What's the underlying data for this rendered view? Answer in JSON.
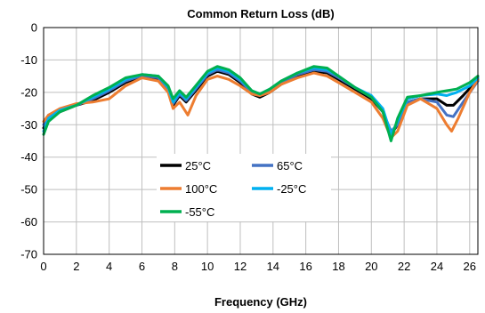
{
  "chart_data": {
    "type": "line",
    "title": "Common Return Loss (dB)",
    "xlabel": "Frequency (GHz)",
    "ylabel": "",
    "xlim": [
      0,
      26.5
    ],
    "ylim": [
      -70,
      0
    ],
    "x_ticks": [
      0,
      2,
      4,
      6,
      8,
      10,
      12,
      14,
      16,
      18,
      20,
      22,
      24,
      26
    ],
    "y_ticks": [
      0,
      -10,
      -20,
      -30,
      -40,
      -50,
      -60,
      -70
    ],
    "grid": true,
    "legend_position": "center-left",
    "series": [
      {
        "name": "25°C",
        "color": "#000000",
        "points": [
          [
            0,
            -31
          ],
          [
            0.3,
            -28
          ],
          [
            1,
            -26
          ],
          [
            2,
            -24
          ],
          [
            3,
            -22.5
          ],
          [
            4,
            -20
          ],
          [
            5,
            -17
          ],
          [
            6,
            -15
          ],
          [
            7,
            -16
          ],
          [
            7.6,
            -19
          ],
          [
            7.9,
            -24
          ],
          [
            8.3,
            -21
          ],
          [
            8.7,
            -23
          ],
          [
            9.2,
            -20
          ],
          [
            10,
            -15
          ],
          [
            10.6,
            -13.5
          ],
          [
            11.3,
            -14.5
          ],
          [
            12,
            -17
          ],
          [
            12.7,
            -20.5
          ],
          [
            13.2,
            -21.5
          ],
          [
            13.8,
            -20
          ],
          [
            14.5,
            -17.5
          ],
          [
            15.5,
            -15
          ],
          [
            16.5,
            -13.5
          ],
          [
            17.3,
            -14
          ],
          [
            18,
            -16
          ],
          [
            19,
            -19
          ],
          [
            20,
            -22
          ],
          [
            20.7,
            -26
          ],
          [
            21.2,
            -33
          ],
          [
            21.6,
            -30
          ],
          [
            22.2,
            -23
          ],
          [
            23,
            -22
          ],
          [
            24,
            -22
          ],
          [
            24.6,
            -24
          ],
          [
            25,
            -24
          ],
          [
            25.6,
            -21
          ],
          [
            26.5,
            -16
          ]
        ]
      },
      {
        "name": "65°C",
        "color": "#4472C4",
        "points": [
          [
            0,
            -30
          ],
          [
            0.3,
            -27
          ],
          [
            1,
            -25.5
          ],
          [
            2,
            -24
          ],
          [
            3,
            -22
          ],
          [
            4,
            -19.5
          ],
          [
            5,
            -16.5
          ],
          [
            6,
            -14.8
          ],
          [
            7,
            -15.5
          ],
          [
            7.6,
            -19
          ],
          [
            7.9,
            -23.5
          ],
          [
            8.3,
            -20.5
          ],
          [
            8.7,
            -22.5
          ],
          [
            9.2,
            -19.5
          ],
          [
            10,
            -14.5
          ],
          [
            10.6,
            -13
          ],
          [
            11.3,
            -14
          ],
          [
            12,
            -16.5
          ],
          [
            12.7,
            -20
          ],
          [
            13.2,
            -21
          ],
          [
            13.8,
            -19.5
          ],
          [
            14.5,
            -17
          ],
          [
            15.5,
            -14.5
          ],
          [
            16.5,
            -13
          ],
          [
            17.3,
            -13.5
          ],
          [
            18,
            -15.5
          ],
          [
            19,
            -18.5
          ],
          [
            20,
            -21.5
          ],
          [
            20.7,
            -26
          ],
          [
            21.2,
            -32
          ],
          [
            21.6,
            -30
          ],
          [
            22.2,
            -23
          ],
          [
            23,
            -22
          ],
          [
            24,
            -23
          ],
          [
            24.6,
            -27
          ],
          [
            25,
            -27.5
          ],
          [
            25.6,
            -23
          ],
          [
            26.5,
            -16.5
          ]
        ]
      },
      {
        "name": "100°C",
        "color": "#ED7D31",
        "points": [
          [
            0,
            -29
          ],
          [
            0.3,
            -27
          ],
          [
            1,
            -25
          ],
          [
            2,
            -23.5
          ],
          [
            3,
            -23
          ],
          [
            4,
            -22
          ],
          [
            5,
            -18
          ],
          [
            6,
            -15.5
          ],
          [
            7,
            -16.5
          ],
          [
            7.6,
            -20
          ],
          [
            7.9,
            -25
          ],
          [
            8.3,
            -23
          ],
          [
            8.8,
            -27
          ],
          [
            9.3,
            -21
          ],
          [
            10,
            -16
          ],
          [
            10.6,
            -15
          ],
          [
            11.3,
            -16
          ],
          [
            12,
            -18
          ],
          [
            12.7,
            -20.5
          ],
          [
            13.2,
            -21
          ],
          [
            13.8,
            -20
          ],
          [
            14.5,
            -17.5
          ],
          [
            15.5,
            -15.5
          ],
          [
            16.5,
            -14
          ],
          [
            17.3,
            -15
          ],
          [
            18,
            -17
          ],
          [
            19,
            -20
          ],
          [
            20,
            -23
          ],
          [
            20.7,
            -28
          ],
          [
            21.2,
            -34
          ],
          [
            21.6,
            -32
          ],
          [
            22.2,
            -24
          ],
          [
            23,
            -22
          ],
          [
            24,
            -25
          ],
          [
            24.6,
            -30
          ],
          [
            24.9,
            -32
          ],
          [
            25.3,
            -28
          ],
          [
            26,
            -20
          ],
          [
            26.5,
            -16
          ]
        ]
      },
      {
        "name": "-25°C",
        "color": "#00B0F0",
        "points": [
          [
            0,
            -32
          ],
          [
            0.3,
            -28
          ],
          [
            1,
            -25.5
          ],
          [
            2,
            -24
          ],
          [
            3,
            -21.5
          ],
          [
            4,
            -19
          ],
          [
            5,
            -16
          ],
          [
            6,
            -14.5
          ],
          [
            7,
            -15
          ],
          [
            7.6,
            -18.5
          ],
          [
            7.9,
            -23
          ],
          [
            8.3,
            -20
          ],
          [
            8.7,
            -22
          ],
          [
            9.2,
            -19
          ],
          [
            10,
            -14
          ],
          [
            10.6,
            -12.5
          ],
          [
            11.3,
            -13.5
          ],
          [
            12,
            -16
          ],
          [
            12.7,
            -19.5
          ],
          [
            13.2,
            -20.5
          ],
          [
            13.8,
            -19
          ],
          [
            14.5,
            -16.5
          ],
          [
            15.5,
            -14
          ],
          [
            16.5,
            -12.5
          ],
          [
            17.3,
            -13
          ],
          [
            18,
            -15
          ],
          [
            19,
            -18.5
          ],
          [
            20,
            -21
          ],
          [
            20.7,
            -25
          ],
          [
            21.2,
            -33
          ],
          [
            21.6,
            -29
          ],
          [
            22.2,
            -22
          ],
          [
            23,
            -21
          ],
          [
            24,
            -20.5
          ],
          [
            24.6,
            -21
          ],
          [
            25.2,
            -20
          ],
          [
            26,
            -18
          ],
          [
            26.5,
            -15.5
          ]
        ]
      },
      {
        "name": "-55°C",
        "color": "#00B050",
        "points": [
          [
            0,
            -33
          ],
          [
            0.3,
            -29
          ],
          [
            1,
            -26
          ],
          [
            2,
            -24
          ],
          [
            3,
            -21
          ],
          [
            4,
            -18.5
          ],
          [
            5,
            -15.5
          ],
          [
            6,
            -14.5
          ],
          [
            7,
            -15
          ],
          [
            7.6,
            -18
          ],
          [
            7.9,
            -22
          ],
          [
            8.3,
            -19.5
          ],
          [
            8.7,
            -21.5
          ],
          [
            9.2,
            -18.5
          ],
          [
            10,
            -13.5
          ],
          [
            10.6,
            -12
          ],
          [
            11.3,
            -13
          ],
          [
            12,
            -15.5
          ],
          [
            12.7,
            -19.5
          ],
          [
            13.2,
            -20.5
          ],
          [
            13.8,
            -19
          ],
          [
            14.5,
            -16.5
          ],
          [
            15.5,
            -14
          ],
          [
            16.5,
            -12
          ],
          [
            17.3,
            -12.5
          ],
          [
            18,
            -15
          ],
          [
            19,
            -18.5
          ],
          [
            20,
            -21.5
          ],
          [
            20.7,
            -26
          ],
          [
            21.2,
            -35
          ],
          [
            21.6,
            -28
          ],
          [
            22.2,
            -21.5
          ],
          [
            23,
            -21
          ],
          [
            24,
            -20
          ],
          [
            24.6,
            -19.5
          ],
          [
            25.2,
            -19
          ],
          [
            26,
            -17
          ],
          [
            26.5,
            -15
          ]
        ]
      }
    ]
  }
}
